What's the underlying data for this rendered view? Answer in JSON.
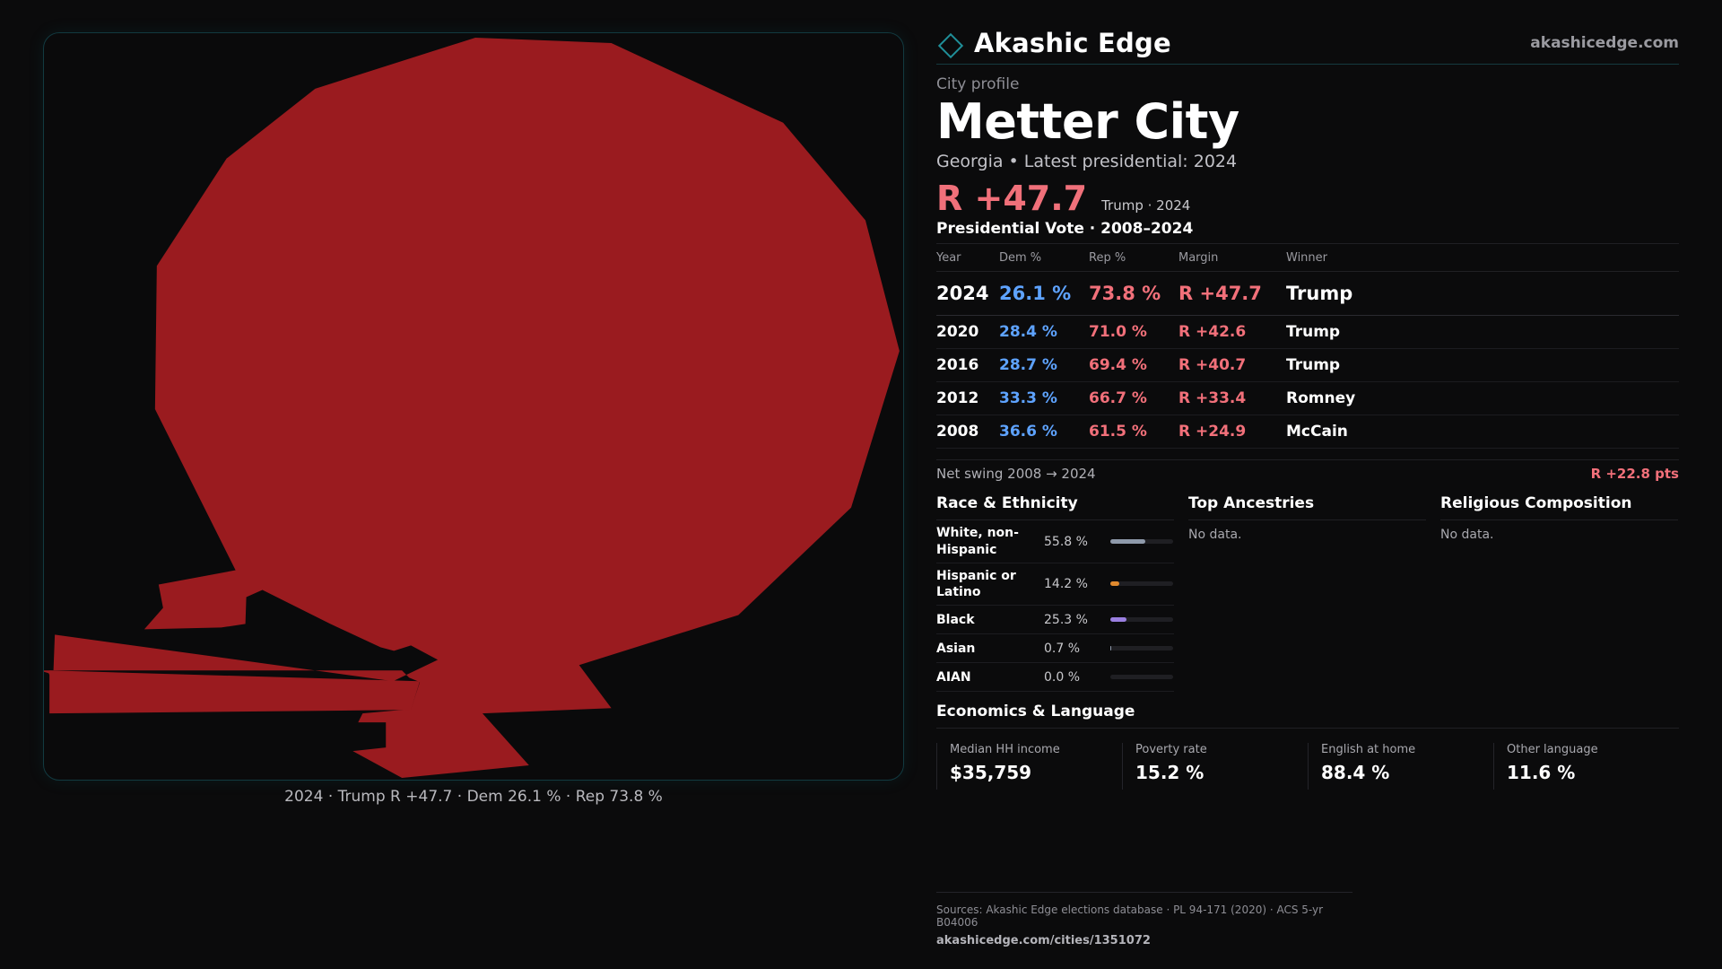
{
  "brand": {
    "name": "Akashic Edge",
    "url": "akashicedge.com",
    "accent": "#1f8f99"
  },
  "map": {
    "caption": "2024 · Trump R +47.7 · Dem 26.1 % · Rep 73.8 %",
    "fill_color": "#9a1b1f"
  },
  "profile": {
    "eyebrow": "City profile",
    "city": "Metter City",
    "subline": "Georgia • Latest presidential: 2024",
    "margin": "R +47.7",
    "margin_note": "Trump · 2024"
  },
  "votes": {
    "title": "Presidential Vote · 2008–2024",
    "headers": {
      "year": "Year",
      "dem": "Dem %",
      "rep": "Rep %",
      "margin": "Margin",
      "winner": "Winner"
    },
    "rows": [
      {
        "year": "2024",
        "dem": "26.1 %",
        "rep": "73.8 %",
        "margin": "R +47.7",
        "winner": "Trump"
      },
      {
        "year": "2020",
        "dem": "28.4 %",
        "rep": "71.0 %",
        "margin": "R +42.6",
        "winner": "Trump"
      },
      {
        "year": "2016",
        "dem": "28.7 %",
        "rep": "69.4 %",
        "margin": "R +40.7",
        "winner": "Trump"
      },
      {
        "year": "2012",
        "dem": "33.3 %",
        "rep": "66.7 %",
        "margin": "R +33.4",
        "winner": "Romney"
      },
      {
        "year": "2008",
        "dem": "36.6 %",
        "rep": "61.5 %",
        "margin": "R +24.9",
        "winner": "McCain"
      }
    ],
    "colors": {
      "dem": "#5ea3ff",
      "rep": "#f2707a"
    }
  },
  "swing": {
    "label": "Net swing 2008 → 2024",
    "value": "R +22.8 pts"
  },
  "race": {
    "title": "Race & Ethnicity",
    "items": [
      {
        "label": "White, non-Hispanic",
        "pct": "55.8 %",
        "value": 55.8,
        "color": "#8f9aab"
      },
      {
        "label": "Hispanic or Latino",
        "pct": "14.2 %",
        "value": 14.2,
        "color": "#e08a2e"
      },
      {
        "label": "Black",
        "pct": "25.3 %",
        "value": 25.3,
        "color": "#9a7fe0"
      },
      {
        "label": "Asian",
        "pct": "0.7 %",
        "value": 0.7,
        "color": "#8f9aab"
      },
      {
        "label": "AIAN",
        "pct": "0.0 %",
        "value": 0.0,
        "color": "#8f9aab"
      }
    ]
  },
  "ancestries": {
    "title": "Top Ancestries",
    "empty": "No data."
  },
  "religion": {
    "title": "Religious Composition",
    "empty": "No data."
  },
  "economics": {
    "title": "Economics & Language",
    "cells": [
      {
        "label": "Median HH income",
        "value": "$35,759"
      },
      {
        "label": "Poverty rate",
        "value": "15.2 %"
      },
      {
        "label": "English at home",
        "value": "88.4 %"
      },
      {
        "label": "Other language",
        "value": "11.6 %"
      }
    ]
  },
  "sources": {
    "text": "Sources: Akashic Edge elections database · PL 94-171 (2020) · ACS 5-yr B04006",
    "url": "akashicedge.com/cities/1351072"
  }
}
